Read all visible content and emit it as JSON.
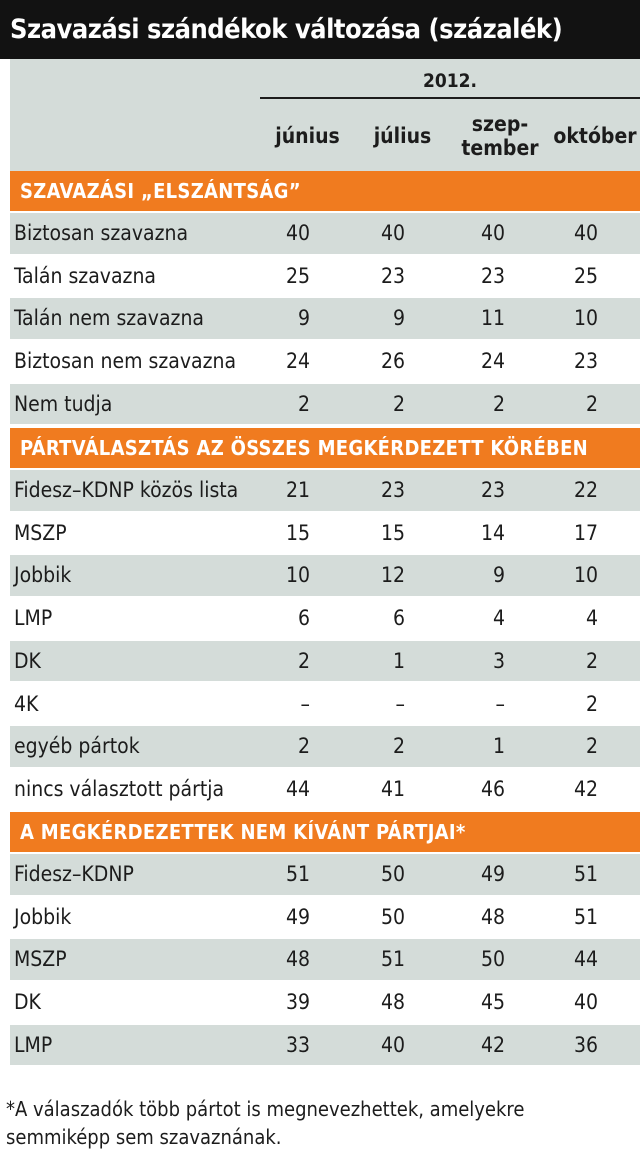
{
  "chart_data": {
    "type": "table",
    "title": "Szavazási szándékok változása (százalék)",
    "year": "2012.",
    "columns": [
      "június",
      "július",
      "szep-\ntember",
      "október"
    ],
    "sections": [
      {
        "heading": "SZAVAZÁSI „ELSZÁNTSÁG”",
        "rows": [
          {
            "label": "Biztosan szavazna",
            "values": [
              "40",
              "40",
              "40",
              "40"
            ]
          },
          {
            "label": "Talán szavazna",
            "values": [
              "25",
              "23",
              "23",
              "25"
            ]
          },
          {
            "label": "Talán nem szavazna",
            "values": [
              "9",
              "9",
              "11",
              "10"
            ]
          },
          {
            "label": "Biztosan nem szavazna",
            "values": [
              "24",
              "26",
              "24",
              "23"
            ]
          },
          {
            "label": "Nem tudja",
            "values": [
              "2",
              "2",
              "2",
              "2"
            ]
          }
        ]
      },
      {
        "heading": "PÁRTVÁLASZTÁS AZ ÖSSZES MEGKÉRDEZETT KÖRÉBEN",
        "rows": [
          {
            "label": "Fidesz–KDNP közös lista",
            "values": [
              "21",
              "23",
              "23",
              "22"
            ]
          },
          {
            "label": "MSZP",
            "values": [
              "15",
              "15",
              "14",
              "17"
            ]
          },
          {
            "label": "Jobbik",
            "values": [
              "10",
              "12",
              "9",
              "10"
            ]
          },
          {
            "label": "LMP",
            "values": [
              "6",
              "6",
              "4",
              "4"
            ]
          },
          {
            "label": "DK",
            "values": [
              "2",
              "1",
              "3",
              "2"
            ]
          },
          {
            "label": "4K",
            "values": [
              "–",
              "–",
              "–",
              "2"
            ]
          },
          {
            "label": "egyéb pártok",
            "values": [
              "2",
              "2",
              "1",
              "2"
            ]
          },
          {
            "label": "nincs választott pártja",
            "values": [
              "44",
              "41",
              "46",
              "42"
            ]
          }
        ]
      },
      {
        "heading": "A MEGKÉRDEZETTEK NEM KÍVÁNT PÁRTJAI*",
        "rows": [
          {
            "label": "Fidesz–KDNP",
            "values": [
              "51",
              "50",
              "49",
              "51"
            ]
          },
          {
            "label": "Jobbik",
            "values": [
              "49",
              "50",
              "48",
              "51"
            ]
          },
          {
            "label": "MSZP",
            "values": [
              "48",
              "51",
              "50",
              "44"
            ]
          },
          {
            "label": "DK",
            "values": [
              "39",
              "48",
              "45",
              "40"
            ]
          },
          {
            "label": "LMP",
            "values": [
              "33",
              "40",
              "42",
              "36"
            ]
          }
        ]
      }
    ],
    "footnote": "*A válaszadók több pártot is megnevezhettek, amelyekre semmiképp sem szavaznának.",
    "colors": {
      "title_bg": "#121212",
      "section_bg": "#f07b1f",
      "shade_bg": "#d4dcd9",
      "text": "#1c1c1c"
    }
  }
}
